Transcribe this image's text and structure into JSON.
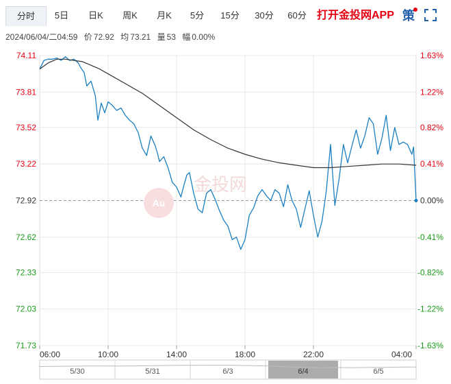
{
  "tabs": [
    {
      "label": "分时",
      "active": true
    },
    {
      "label": "5日",
      "active": false
    },
    {
      "label": "日K",
      "active": false
    },
    {
      "label": "周K",
      "active": false
    },
    {
      "label": "月K",
      "active": false
    },
    {
      "label": "5分",
      "active": false
    },
    {
      "label": "15分",
      "active": false
    },
    {
      "label": "30分",
      "active": false
    },
    {
      "label": "60分",
      "active": false
    }
  ],
  "app_link": "打开金投网APP",
  "strategy_label": "策",
  "info": {
    "datetime": "2024/06/04/二04:59",
    "price_label": "价",
    "price": "72.92",
    "avg_label": "均",
    "avg": "73.21",
    "volume_label": "量",
    "volume": "53",
    "change_label": "幅",
    "change": "0.00%"
  },
  "colors": {
    "price_line": "#1a7fc1",
    "avg_line": "#333333",
    "up": "#e60012",
    "down": "#1a9c1a",
    "grid": "#e8e8e8",
    "accent_link": "#e60012"
  },
  "icons": [
    "fullscreen-icon"
  ],
  "watermark": "金投网",
  "chart_data": {
    "type": "line",
    "prev_close": 72.92,
    "y_tick_labels": [
      "74.11",
      "73.81",
      "73.52",
      "73.22",
      "72.92",
      "72.62",
      "72.33",
      "72.03",
      "71.73"
    ],
    "y_tick_values": [
      74.11,
      73.81,
      73.52,
      73.22,
      72.92,
      72.62,
      72.33,
      72.03,
      71.73
    ],
    "pct_tick_labels": [
      "1.63%",
      "1.22%",
      "0.82%",
      "0.41%",
      "0.00%",
      "-0.41%",
      "-0.82%",
      "-1.22%",
      "-1.63%"
    ],
    "ylim": [
      71.73,
      74.11
    ],
    "x_tick_labels": [
      "06:00",
      "10:00",
      "14:00",
      "18:00",
      "22:00",
      "04:00"
    ],
    "x_tick_hours": [
      0,
      4,
      8,
      12,
      16,
      22
    ],
    "xlim_hours": [
      0,
      22
    ],
    "grid": true,
    "series": [
      {
        "x": [
          0,
          0.25,
          0.5,
          0.75,
          1,
          1.25,
          1.5,
          1.75,
          2,
          2.25,
          2.4,
          2.6,
          2.75,
          3,
          3.25,
          3.4,
          3.6,
          3.8,
          4,
          4.25,
          4.5,
          4.75,
          5,
          5.25,
          5.5,
          5.75,
          6,
          6.25,
          6.5,
          6.75,
          6.9,
          7,
          7.25,
          7.5,
          7.75,
          8,
          8.25,
          8.4,
          8.6,
          8.75,
          9,
          9.25,
          9.5,
          9.75,
          10,
          10.25,
          10.5,
          10.75,
          11,
          11.25,
          11.5,
          11.75,
          12,
          12.25,
          12.5,
          12.75,
          13,
          13.25,
          13.5,
          13.75,
          14,
          14.25,
          14.5,
          14.75,
          15,
          15.25,
          15.5,
          15.75,
          16,
          16.25,
          16.5,
          16.75,
          17,
          17.25,
          17.5,
          17.75,
          18,
          18.25,
          18.5,
          18.75,
          19,
          19.25,
          19.5,
          19.75,
          20,
          20.25,
          20.5,
          20.75,
          21,
          21.25,
          21.5,
          21.75,
          21.85,
          22
        ],
        "y": [
          74.0,
          74.07,
          74.08,
          74.08,
          74.09,
          74.07,
          74.1,
          74.07,
          74.08,
          74.05,
          74.01,
          73.97,
          73.86,
          73.9,
          73.78,
          73.58,
          73.72,
          73.64,
          73.73,
          73.7,
          73.66,
          73.68,
          73.62,
          73.58,
          73.55,
          73.48,
          73.35,
          73.29,
          73.45,
          73.37,
          73.3,
          73.24,
          73.28,
          73.19,
          73.07,
          73.03,
          72.95,
          73.03,
          73.13,
          73.15,
          72.98,
          72.85,
          72.82,
          72.98,
          73.01,
          72.93,
          72.84,
          72.76,
          72.71,
          72.6,
          72.62,
          72.52,
          72.6,
          72.8,
          72.86,
          72.96,
          73.01,
          72.96,
          72.92,
          73.01,
          72.98,
          72.87,
          73.05,
          72.92,
          72.85,
          72.7,
          72.85,
          73.0,
          72.8,
          72.62,
          72.75,
          73.0,
          73.38,
          72.88,
          73.1,
          73.38,
          73.23,
          73.37,
          73.5,
          73.35,
          73.45,
          73.6,
          73.55,
          73.3,
          73.43,
          73.62,
          73.33,
          73.52,
          73.38,
          73.4,
          73.38,
          73.3,
          73.36,
          72.92
        ],
        "name": ""
      },
      {
        "x": [
          0,
          0.5,
          1,
          1.5,
          2,
          2.5,
          3,
          3.5,
          4,
          5,
          6,
          7,
          8,
          9,
          10,
          11,
          12,
          13,
          14,
          15,
          16,
          17,
          18,
          19,
          20,
          21,
          22
        ],
        "y": [
          74.0,
          74.05,
          74.08,
          74.08,
          74.07,
          74.06,
          74.03,
          74.0,
          73.96,
          73.88,
          73.8,
          73.7,
          73.6,
          73.5,
          73.42,
          73.35,
          73.3,
          73.26,
          73.23,
          73.21,
          73.19,
          73.19,
          73.2,
          73.21,
          73.22,
          73.22,
          73.21
        ],
        "name": ""
      }
    ],
    "navigator": {
      "labels": [
        "5/30",
        "5/31",
        "6/3",
        "6/4",
        "6/5"
      ],
      "selected": "6/4"
    }
  }
}
